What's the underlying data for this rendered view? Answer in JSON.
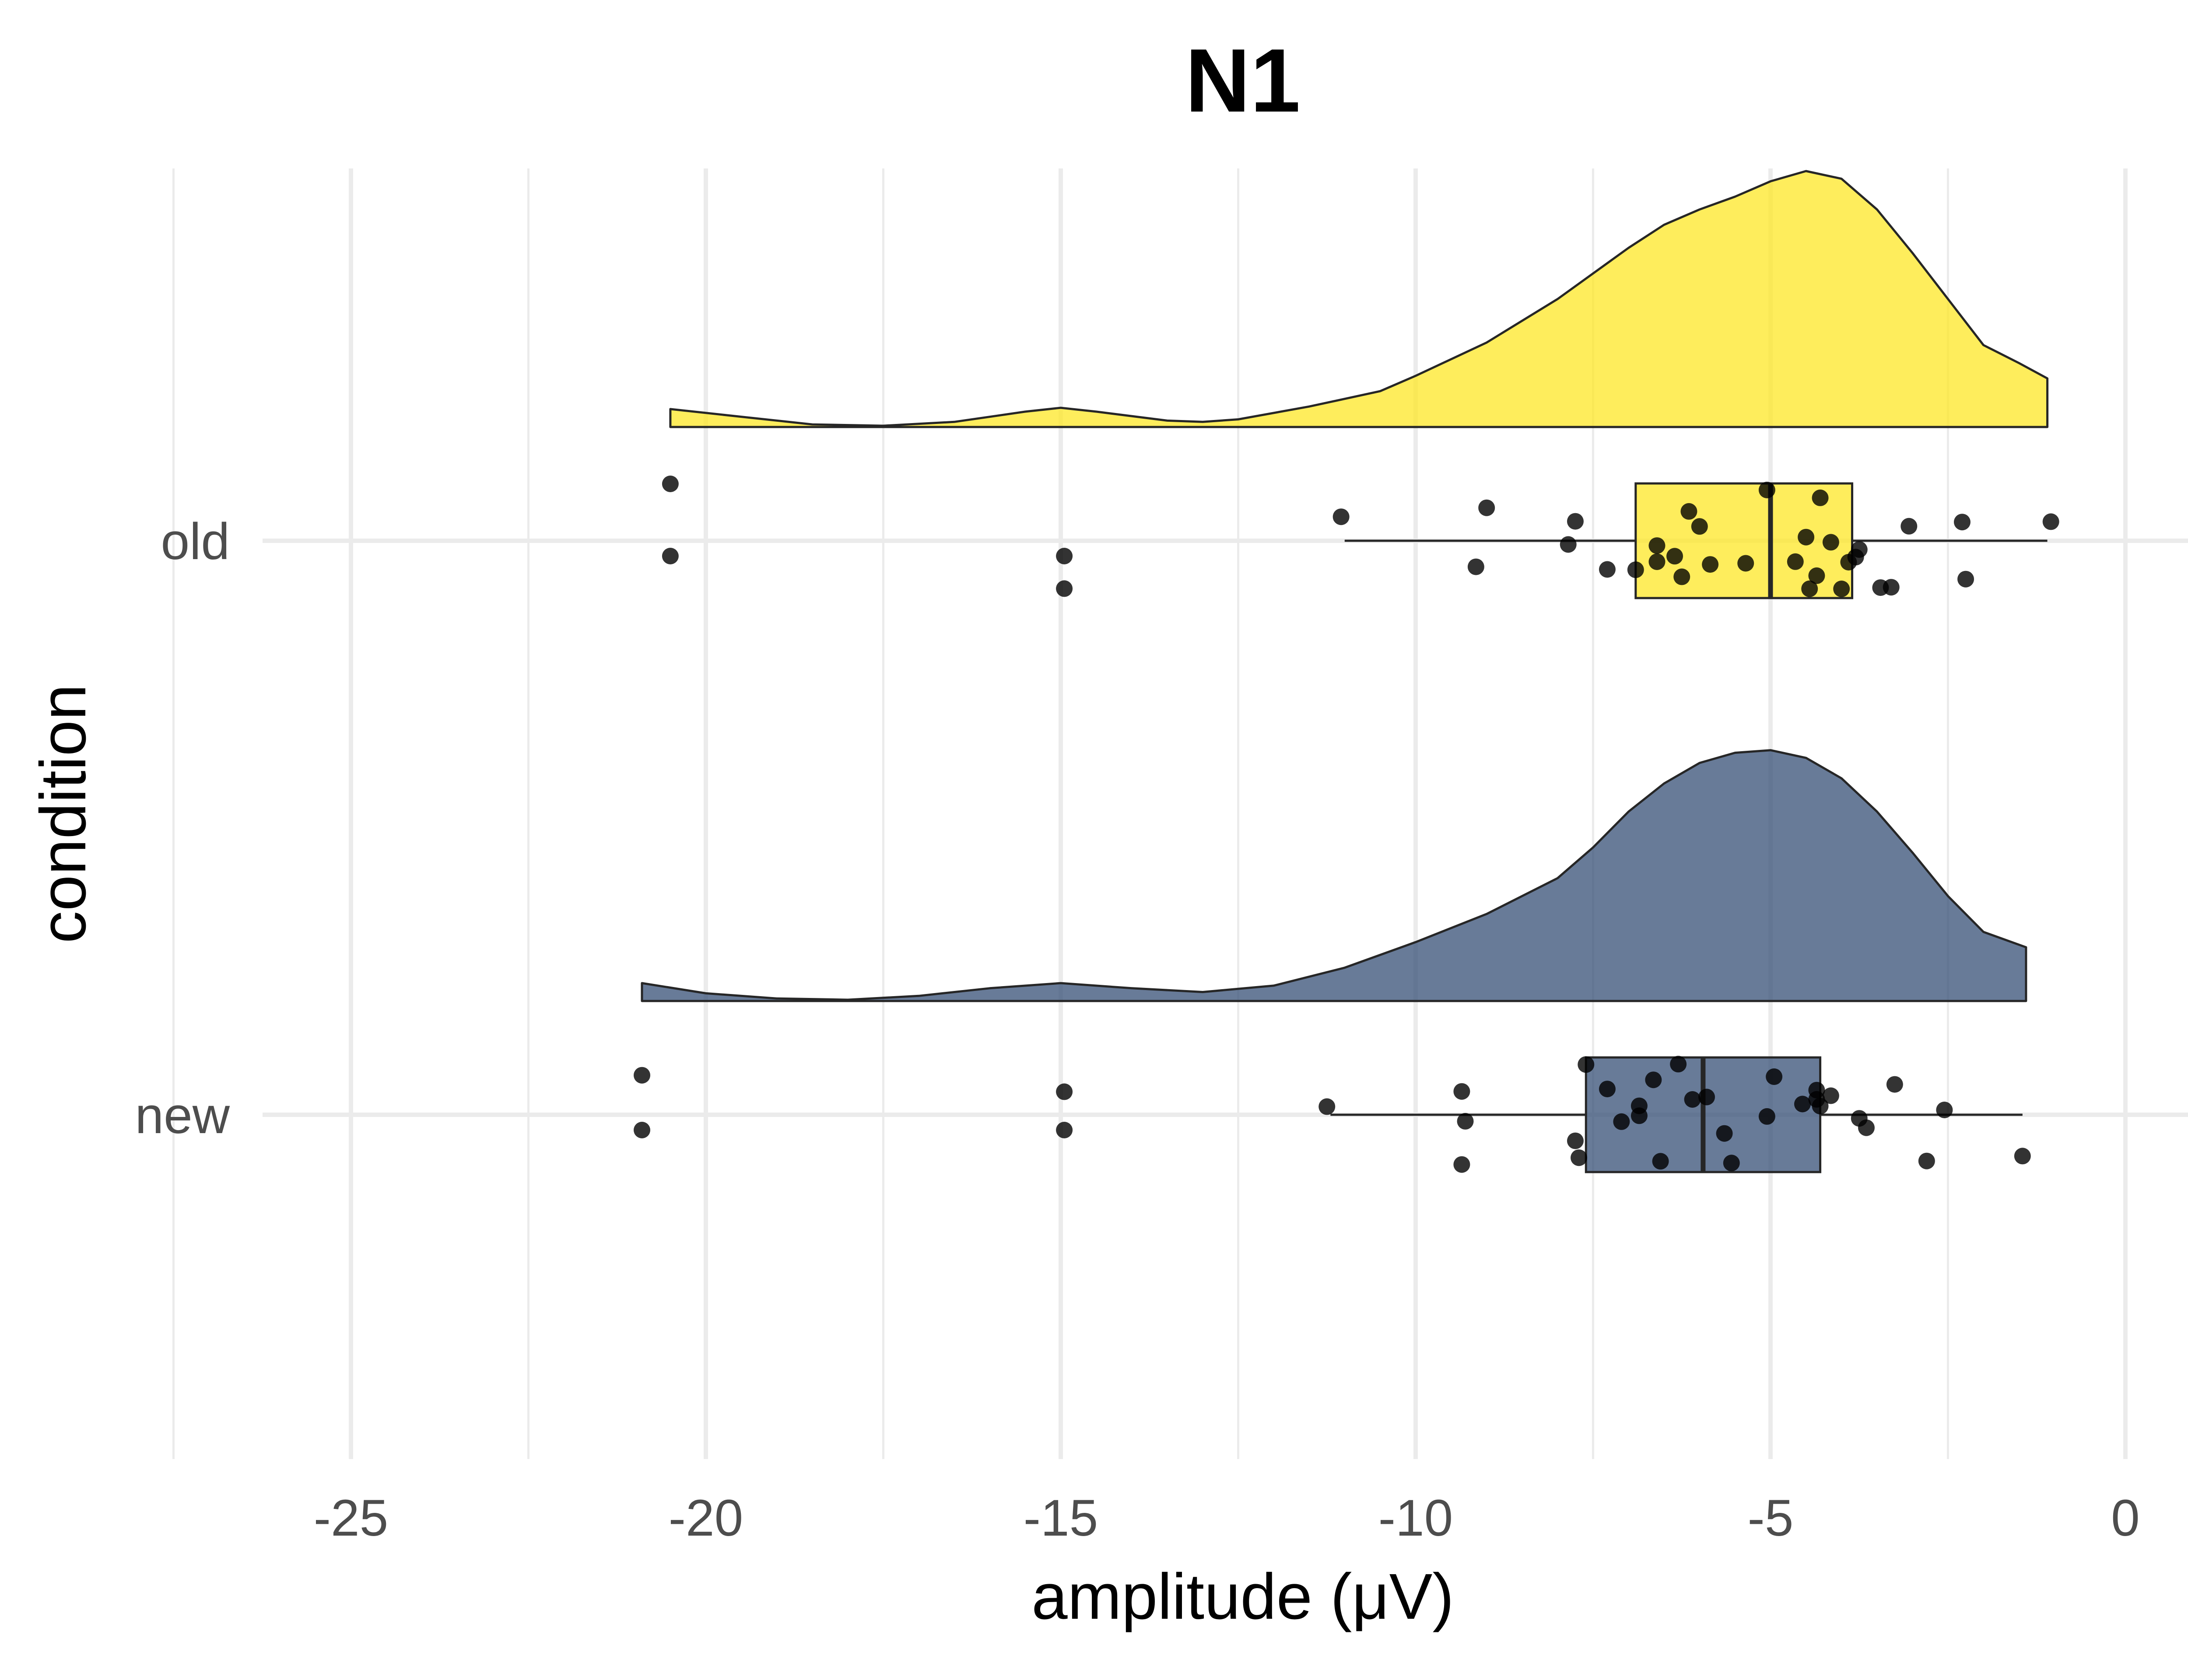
{
  "chart_data": {
    "type": "raincloud",
    "title": "N1",
    "xlabel": "amplitude (μV)",
    "ylabel": "condition",
    "xlim": [
      -27.5,
      1.2
    ],
    "x_ticks": [
      -25,
      -20,
      -15,
      -10,
      -5,
      0
    ],
    "x_tick_labels": [
      "-25",
      "-20",
      "-15",
      "-10",
      "-5",
      "0"
    ],
    "grid": true,
    "categories": [
      "old",
      "new"
    ],
    "series": [
      {
        "name": "old",
        "color": "#FDE725",
        "box": {
          "min": -11.0,
          "q1": -6.9,
          "median": -5.0,
          "q3": -3.85,
          "max": -1.1
        },
        "outliers": [
          -20.5,
          -14.95
        ],
        "points": [
          -20.5,
          -14.95,
          -11.05,
          -9.0,
          -9.15,
          -7.85,
          -7.75,
          -7.3,
          -6.9,
          -6.6,
          -6.6,
          -6.35,
          -6.25,
          -6.15,
          -6.0,
          -5.85,
          -5.35,
          -5.05,
          -4.65,
          -4.5,
          -4.45,
          -4.35,
          -4.3,
          -4.15,
          -4.0,
          -3.9,
          -3.8,
          -3.75,
          -3.45,
          -3.3,
          -3.05,
          -2.3,
          -2.25,
          -1.05
        ],
        "density": [
          [
            -20.5,
            0.07
          ],
          [
            -19.5,
            0.04
          ],
          [
            -18.5,
            0.01
          ],
          [
            -17.5,
            0.005
          ],
          [
            -16.5,
            0.02
          ],
          [
            -15.5,
            0.06
          ],
          [
            -15.0,
            0.075
          ],
          [
            -14.5,
            0.06
          ],
          [
            -13.5,
            0.025
          ],
          [
            -13.0,
            0.02
          ],
          [
            -12.5,
            0.03
          ],
          [
            -11.5,
            0.08
          ],
          [
            -10.5,
            0.14
          ],
          [
            -10.0,
            0.2
          ],
          [
            -9.0,
            0.33
          ],
          [
            -8.0,
            0.5
          ],
          [
            -7.0,
            0.7
          ],
          [
            -6.5,
            0.79
          ],
          [
            -6.0,
            0.85
          ],
          [
            -5.5,
            0.9
          ],
          [
            -5.0,
            0.96
          ],
          [
            -4.5,
            1.0
          ],
          [
            -4.0,
            0.97
          ],
          [
            -3.5,
            0.85
          ],
          [
            -3.0,
            0.68
          ],
          [
            -2.5,
            0.5
          ],
          [
            -2.0,
            0.32
          ],
          [
            -1.5,
            0.25
          ],
          [
            -1.1,
            0.19
          ]
        ]
      },
      {
        "name": "new",
        "color": "#354F76",
        "box": {
          "min": -11.2,
          "q1": -7.6,
          "median": -5.95,
          "q3": -4.3,
          "max": -1.45
        },
        "outliers": [
          -20.9,
          -14.95
        ],
        "points": [
          -20.9,
          -14.95,
          -11.25,
          -9.35,
          -9.35,
          -9.3,
          -7.75,
          -7.7,
          -7.6,
          -7.3,
          -7.1,
          -6.85,
          -6.85,
          -6.65,
          -6.55,
          -6.3,
          -6.1,
          -5.9,
          -5.65,
          -5.55,
          -5.05,
          -4.95,
          -4.55,
          -4.35,
          -4.35,
          -4.3,
          -4.15,
          -3.75,
          -3.65,
          -3.25,
          -2.8,
          -2.55,
          -1.45
        ],
        "density": [
          [
            -20.9,
            0.07
          ],
          [
            -20.0,
            0.03
          ],
          [
            -19.0,
            0.01
          ],
          [
            -18.0,
            0.005
          ],
          [
            -17.0,
            0.02
          ],
          [
            -16.0,
            0.05
          ],
          [
            -15.0,
            0.07
          ],
          [
            -14.0,
            0.05
          ],
          [
            -13.0,
            0.035
          ],
          [
            -12.0,
            0.06
          ],
          [
            -11.0,
            0.13
          ],
          [
            -10.0,
            0.23
          ],
          [
            -9.0,
            0.34
          ],
          [
            -8.0,
            0.48
          ],
          [
            -7.5,
            0.6
          ],
          [
            -7.0,
            0.74
          ],
          [
            -6.5,
            0.85
          ],
          [
            -6.0,
            0.93
          ],
          [
            -5.5,
            0.97
          ],
          [
            -5.0,
            0.98
          ],
          [
            -4.5,
            0.95
          ],
          [
            -4.0,
            0.87
          ],
          [
            -3.5,
            0.74
          ],
          [
            -3.0,
            0.58
          ],
          [
            -2.5,
            0.41
          ],
          [
            -2.0,
            0.27
          ],
          [
            -1.4,
            0.21
          ]
        ]
      }
    ]
  }
}
